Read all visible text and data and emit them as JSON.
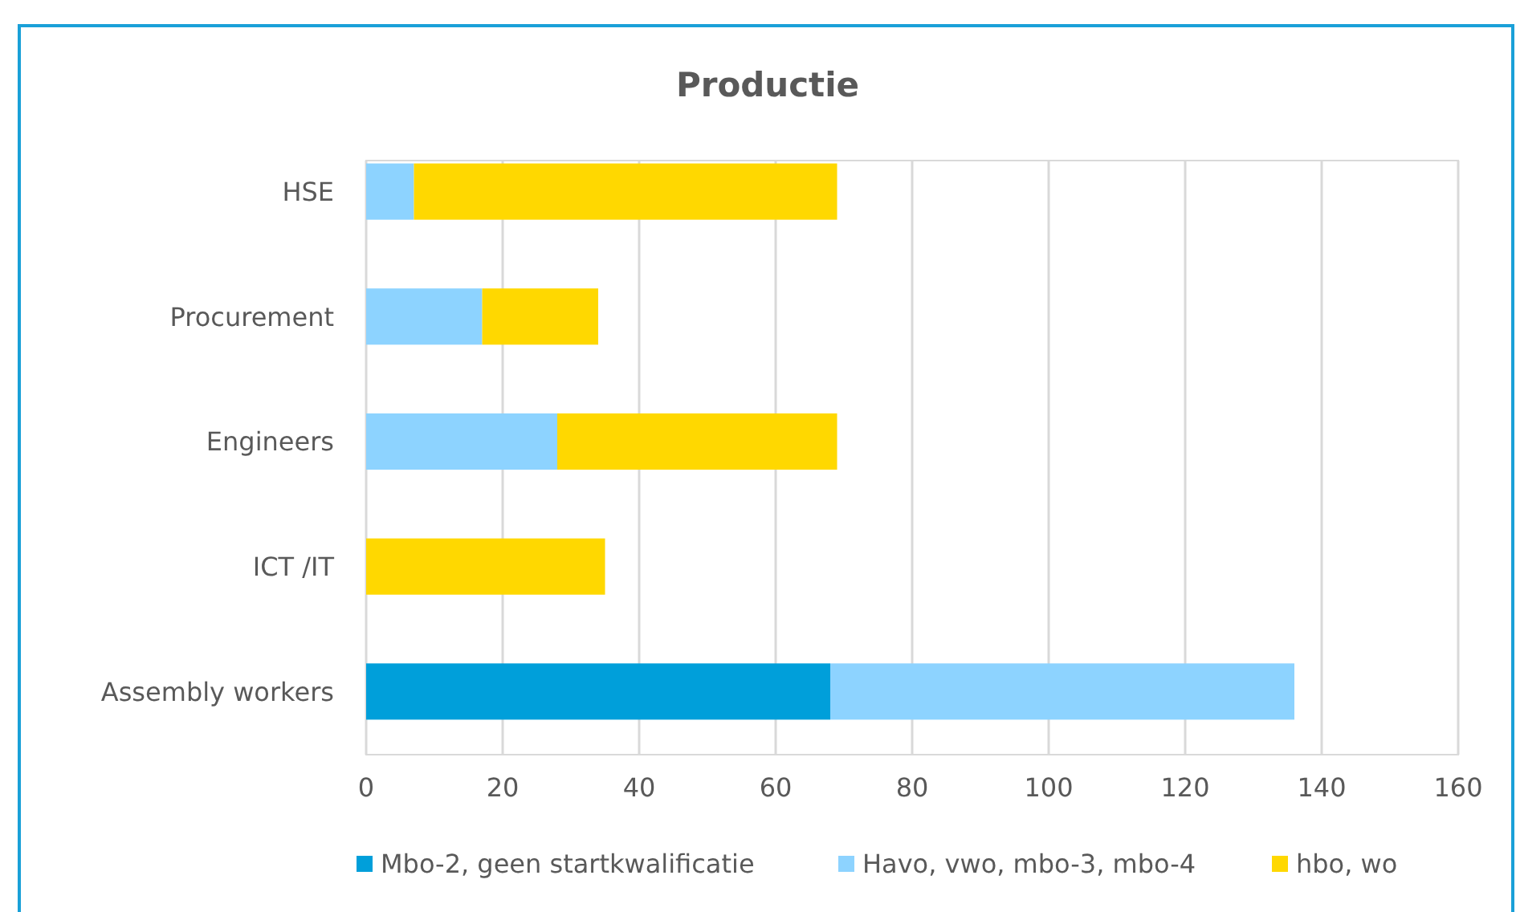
{
  "chart_data": {
    "type": "bar",
    "orientation": "horizontal",
    "stacked": true,
    "title": "Productie",
    "categories": [
      "HSE",
      "Procurement",
      "Engineers",
      "ICT /IT",
      "Assembly workers"
    ],
    "series": [
      {
        "name": "Mbo-2, geen startkwalificatie",
        "color": "#009fda",
        "values": [
          0,
          0,
          0,
          0,
          68
        ]
      },
      {
        "name": "Havo, vwo, mbo-3, mbo-4",
        "color": "#8dd3ff",
        "values": [
          7,
          17,
          28,
          0,
          68
        ]
      },
      {
        "name": "hbo, wo",
        "color": "#ffd800",
        "values": [
          62,
          17,
          41,
          35,
          0
        ]
      }
    ],
    "xlim": [
      0,
      160
    ],
    "xticks": [
      0,
      20,
      40,
      60,
      80,
      100,
      120,
      140,
      160
    ],
    "grid": "x",
    "legend": "bottom"
  }
}
